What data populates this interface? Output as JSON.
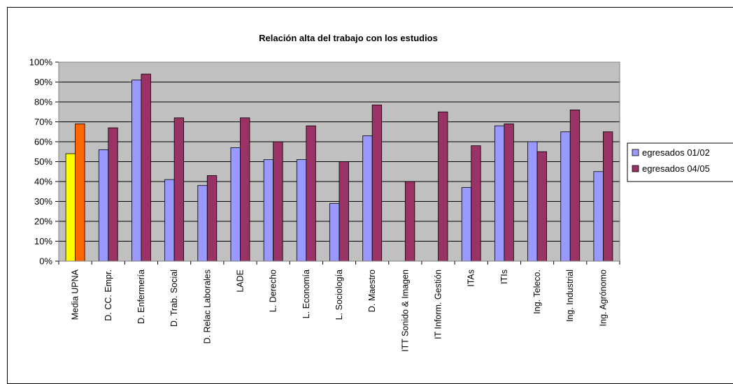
{
  "chart_data": {
    "type": "bar",
    "title": "Relación alta del trabajo con los estudios",
    "categories": [
      "Media UPNA",
      "D. CC. Empr.",
      "D. Enfermería",
      "D. Trab. Social",
      "D. Relac Laborales",
      "LADE",
      "L. Derecho",
      "L. Economía",
      "L. Sociología",
      "D. Maestro",
      "ITT Sonido & Imagen",
      "IT Inform. Gestión",
      "ITAs",
      "ITIs",
      "Ing. Teleco.",
      "Ing. Industrial",
      "Ing. Agrónomo"
    ],
    "series": [
      {
        "name": "egresados 01/02",
        "color": "#9999ff",
        "values": [
          54,
          56,
          91,
          41,
          38,
          57,
          51,
          51,
          29,
          63,
          null,
          null,
          37,
          68,
          60,
          65,
          45
        ]
      },
      {
        "name": "egresados 04/05",
        "color": "#993366",
        "values": [
          69,
          67,
          94,
          72,
          43,
          72,
          60,
          68,
          50,
          78.5,
          40,
          75,
          58,
          69,
          55,
          76,
          65
        ]
      }
    ],
    "highlight": {
      "category_index": 0,
      "colors": [
        "#ffff00",
        "#ff6600"
      ]
    },
    "yticks": [
      "0%",
      "10%",
      "20%",
      "30%",
      "40%",
      "50%",
      "60%",
      "70%",
      "80%",
      "90%",
      "100%"
    ],
    "ylim": [
      0,
      100
    ],
    "plot_background": "#c0c0c0",
    "grid": true,
    "legend_position": "right"
  }
}
